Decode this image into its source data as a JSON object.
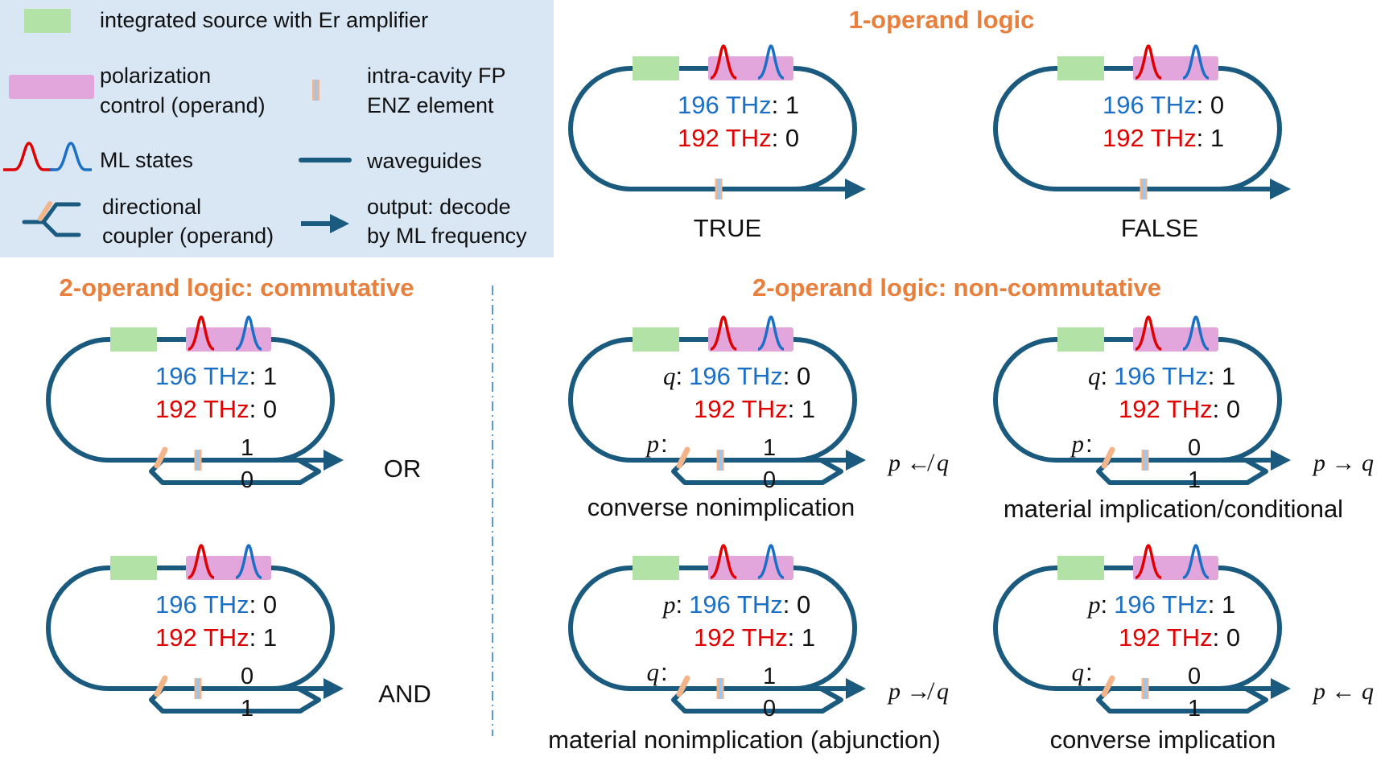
{
  "colors": {
    "waveguide": "#1a5a7f",
    "source": "#b3e2a6",
    "polarization": "#e2a6dd",
    "red": "#e00000",
    "blue": "#1b6fc4",
    "heading": "#e87f3c",
    "legend_bg": "#d9e7f5",
    "coupler_tab": "#f3b48a",
    "enz_stripe": "#9dc6ec",
    "divider": "#5b9bd5",
    "black": "#111111"
  },
  "icons": {
    "source": "green-rectangle",
    "polarization": "pink-rectangle",
    "ml_states": "red-and-blue-peaks",
    "enz": "striped-bar",
    "waveguide": "dark-blue-line",
    "coupler": "y-coupler",
    "output": "arrow"
  },
  "legend": {
    "source": "integrated source with Er amplifier",
    "polarization_line1": "polarization",
    "polarization_line2": "control (operand)",
    "enz_line1": "intra-cavity FP",
    "enz_line2": "ENZ element",
    "ml_states": "ML states",
    "waveguides": "waveguides",
    "coupler_line1": "directional",
    "coupler_line2": "coupler (operand)",
    "output_line1": "output: decode",
    "output_line2": "by ML frequency"
  },
  "headings": {
    "one_operand": "1-operand logic",
    "two_commutative": "2-operand logic: commutative",
    "two_noncommutative": "2-operand logic: non-commutative"
  },
  "freq": {
    "hi": "196 THz",
    "lo": "192 THz"
  },
  "panels": [
    {
      "id": "true",
      "label": "TRUE",
      "hi_val": ": 1",
      "lo_val": ": 0"
    },
    {
      "id": "false",
      "label": "FALSE",
      "hi_val": ": 0",
      "lo_val": ": 1"
    },
    {
      "id": "or",
      "label": "OR",
      "hi_val": ": 1",
      "lo_val": ": 0",
      "port_top": "1",
      "port_bot": "0"
    },
    {
      "id": "and",
      "label": "AND",
      "hi_val": ": 0",
      "lo_val": ": 1",
      "port_top": "0",
      "port_bot": "1"
    },
    {
      "id": "cni",
      "label": "converse nonimplication",
      "ring_op": "q",
      "coupler_op": "p",
      "hi_val": ": 0",
      "lo_val": ": 1",
      "port_top": "1",
      "port_bot": "0",
      "formula": "p ↚ q"
    },
    {
      "id": "mic",
      "label": "material implication/conditional",
      "ring_op": "q",
      "coupler_op": "p",
      "hi_val": ": 1",
      "lo_val": ": 0",
      "port_top": "0",
      "port_bot": "1",
      "formula": "p → q"
    },
    {
      "id": "mni",
      "label": "material nonimplication (abjunction)",
      "ring_op": "p",
      "coupler_op": "q",
      "hi_val": ": 0",
      "lo_val": ": 1",
      "port_top": "1",
      "port_bot": "0",
      "formula": "p ↛ q"
    },
    {
      "id": "ci",
      "label": "converse implication",
      "ring_op": "p",
      "coupler_op": "q",
      "hi_val": ": 1",
      "lo_val": ": 0",
      "port_top": "0",
      "port_bot": "1",
      "formula": "p ← q"
    }
  ]
}
